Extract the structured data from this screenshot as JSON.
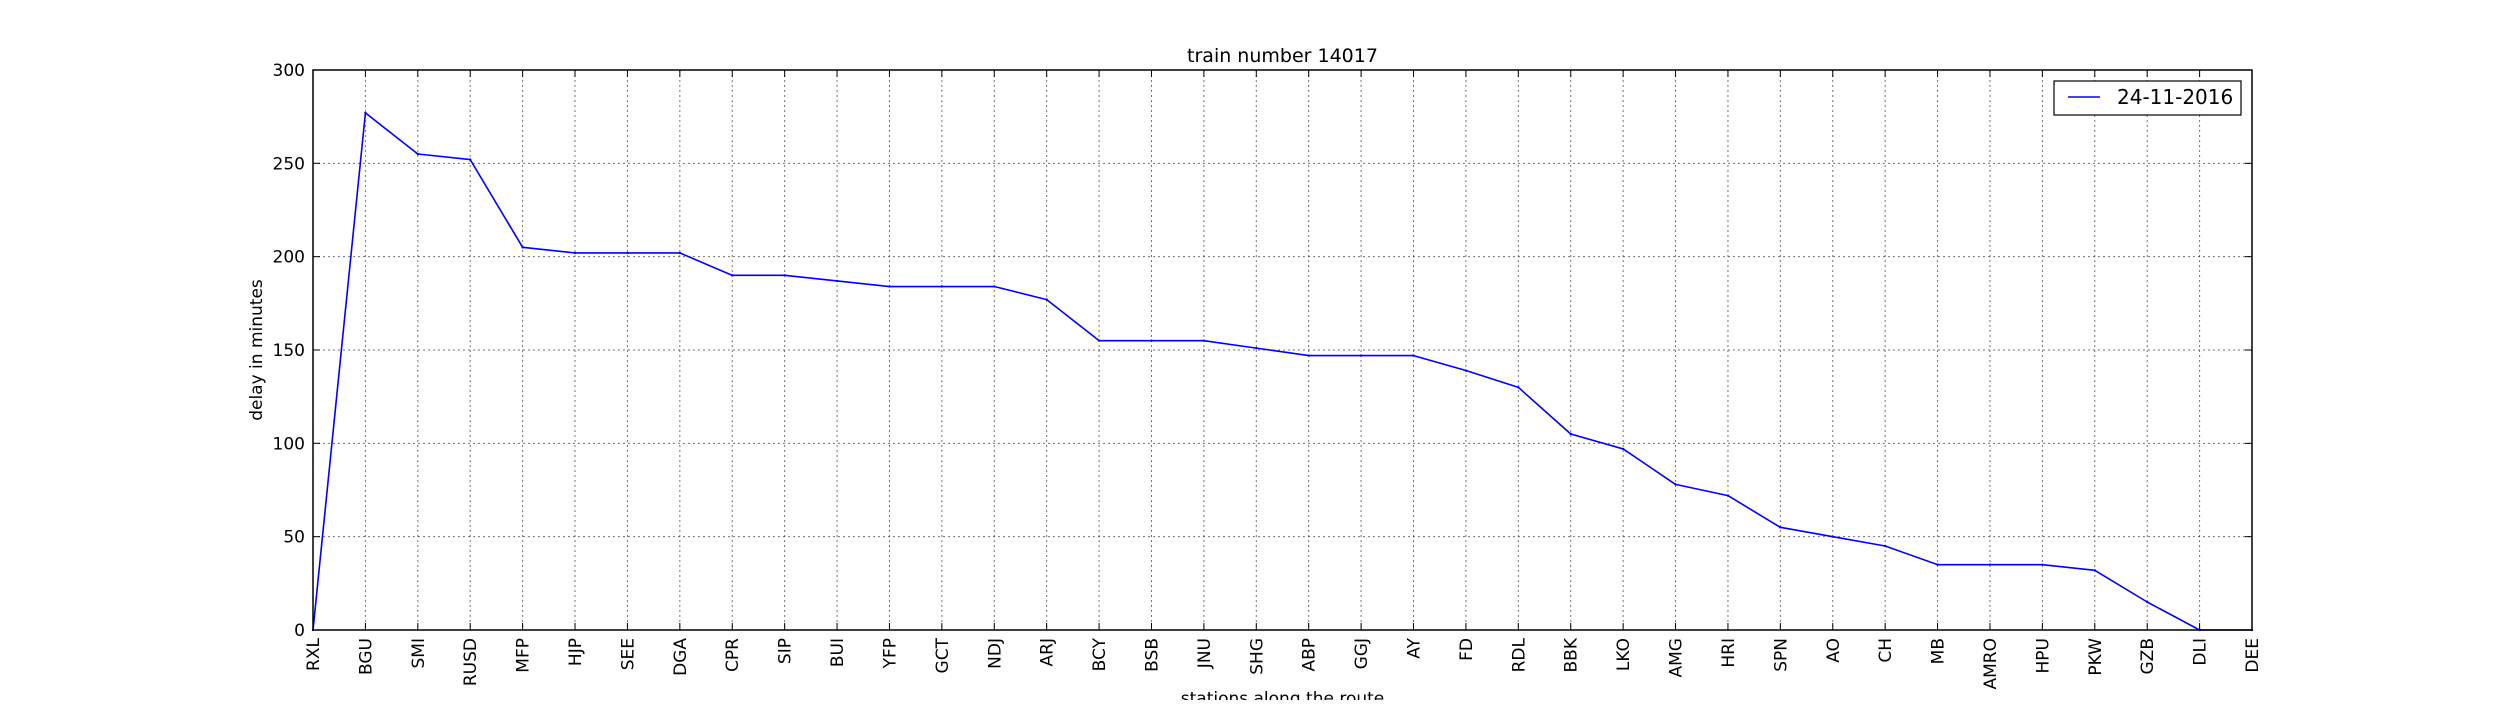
{
  "chart_data": {
    "type": "line",
    "title": "train number 14017",
    "xlabel": "stations along the route",
    "ylabel": "delay in minutes",
    "ylim": [
      0,
      300
    ],
    "yticks": [
      0,
      50,
      100,
      150,
      200,
      250,
      300
    ],
    "grid": true,
    "legend_position": "top-right",
    "categories": [
      "RXL",
      "BGU",
      "SMI",
      "RUSD",
      "MFP",
      "HJP",
      "SEE",
      "DGA",
      "CPR",
      "SIP",
      "BUI",
      "YFP",
      "GCT",
      "NDJ",
      "ARJ",
      "BCY",
      "BSB",
      "JNU",
      "SHG",
      "ABP",
      "GGJ",
      "AY",
      "FD",
      "RDL",
      "BBK",
      "LKO",
      "AMG",
      "HRI",
      "SPN",
      "AO",
      "CH",
      "MB",
      "AMRO",
      "HPU",
      "PKW",
      "GZB",
      "DLI",
      "DEE"
    ],
    "series": [
      {
        "name": "24-11-2016",
        "color": "#0000ff",
        "values": [
          0,
          277,
          255,
          252,
          205,
          202,
          202,
          202,
          190,
          190,
          187,
          184,
          184,
          184,
          177,
          155,
          155,
          155,
          151,
          147,
          147,
          147,
          139,
          130,
          105,
          97,
          78,
          72,
          55,
          50,
          45,
          35,
          35,
          35,
          32,
          15,
          0,
          0
        ]
      }
    ]
  }
}
